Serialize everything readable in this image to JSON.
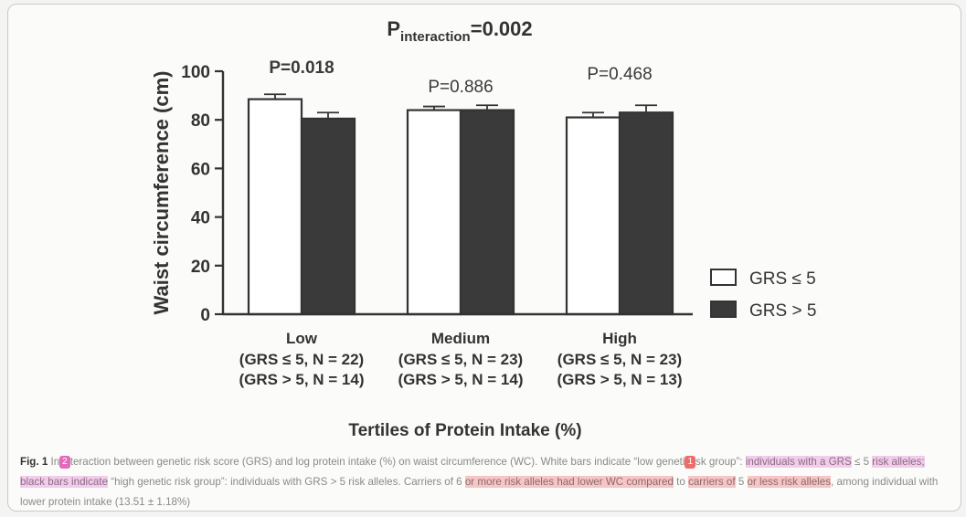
{
  "chart_data": {
    "type": "bar",
    "title_main": "P",
    "title_sub": "interaction",
    "title_value": "=0.002",
    "ylabel": "Waist circumference (cm)",
    "xlabel": "Tertiles of Protein Intake (%)",
    "ylim": [
      0,
      100
    ],
    "yticks": [
      0,
      20,
      40,
      60,
      80,
      100
    ],
    "categories": [
      {
        "name": "Low",
        "line1": "(GRS ≤ 5, N = 22)",
        "line2": "(GRS > 5, N = 14)",
        "p": "P=0.018",
        "p_bold": true
      },
      {
        "name": "Medium",
        "line1": "(GRS ≤ 5, N = 23)",
        "line2": "(GRS > 5, N = 14)",
        "p": "P=0.886",
        "p_bold": false
      },
      {
        "name": "High",
        "line1": "(GRS ≤ 5, N = 23)",
        "line2": "(GRS > 5, N = 13)",
        "p": "P=0.468",
        "p_bold": false
      }
    ],
    "series": [
      {
        "name": "GRS ≤ 5",
        "legend_label": "GRS  ≤  5",
        "fill": "#ffffff",
        "values": [
          88.5,
          84.0,
          81.0
        ],
        "errors": [
          2.0,
          1.5,
          2.0
        ]
      },
      {
        "name": "GRS > 5",
        "legend_label": "GRS  >  5",
        "fill": "#3a3a3a",
        "values": [
          80.5,
          84.0,
          83.0
        ],
        "errors": [
          2.5,
          2.0,
          3.0
        ]
      }
    ],
    "legend_position": "right",
    "grid": false
  },
  "caption": {
    "fig_label": "Fig. 1",
    "badge_2": "2",
    "badge_1": "1",
    "text_a": " In",
    "text_b": "teraction between genetic risk score (GRS) and log protein intake (%) on waist circumference (WC). White bars indicate “low geneti",
    "text_c": "sk group”: ",
    "hl_1": "individuals with a GRS",
    "text_d": " ≤ 5 ",
    "hl_2": "risk alleles; black bars indicate",
    "text_e": " “high genetic risk group”: individuals with GRS > 5 risk alleles. Carriers of 6 ",
    "hl_3": "or more risk alleles had lower WC compared",
    "text_f": " to ",
    "hl_4": "carriers of",
    "text_g": " 5 ",
    "hl_5": "or less risk alleles",
    "text_h": ", among individual with lower protein intake (13.51 ± 1.18%)"
  }
}
